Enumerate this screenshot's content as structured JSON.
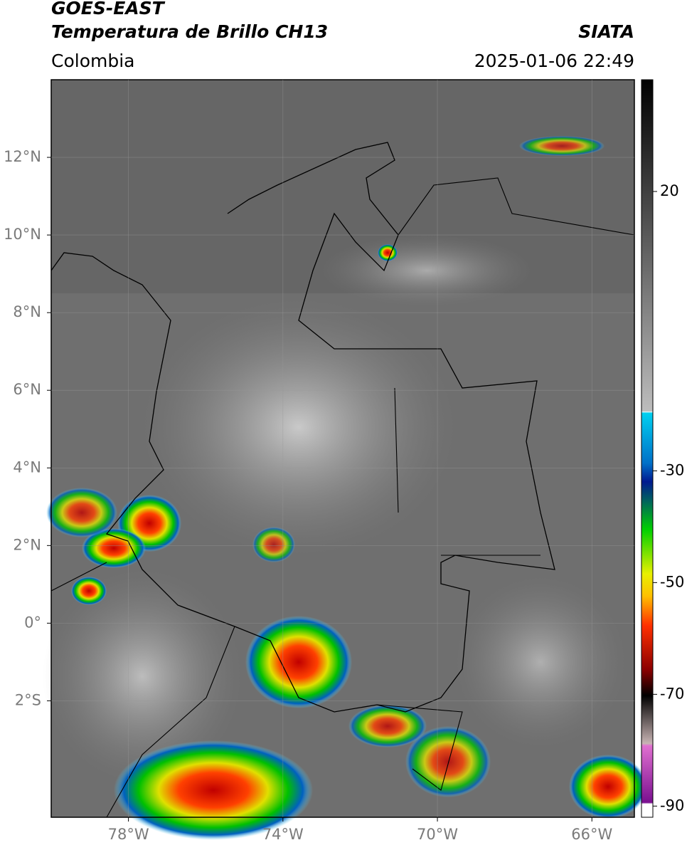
{
  "header": {
    "title": "GOES-EAST",
    "subtitle": "Temperatura de Brillo CH13",
    "source": "SIATA",
    "region": "Colombia",
    "datetime": "2025-01-06 22:49"
  },
  "map": {
    "lonlim": [
      -80,
      -64.9
    ],
    "latlim": [
      -5,
      14
    ],
    "lonticks": [
      {
        "value": -78,
        "label": "78°W"
      },
      {
        "value": -74,
        "label": "74°W"
      },
      {
        "value": -70,
        "label": "70°W"
      },
      {
        "value": -66,
        "label": "66°W"
      }
    ],
    "latticks": [
      {
        "value": 12,
        "label": "12°N"
      },
      {
        "value": 10,
        "label": "10°N"
      },
      {
        "value": 8,
        "label": "8°N"
      },
      {
        "value": 6,
        "label": "6°N"
      },
      {
        "value": 4,
        "label": "4°N"
      },
      {
        "value": 2,
        "label": "2°N"
      },
      {
        "value": 0,
        "label": "0°"
      },
      {
        "value": -2,
        "label": "2°S"
      }
    ]
  },
  "colorbar": {
    "lim": [
      -92,
      40
    ],
    "ticks": [
      20,
      -30,
      -50,
      -70,
      -90
    ]
  }
}
